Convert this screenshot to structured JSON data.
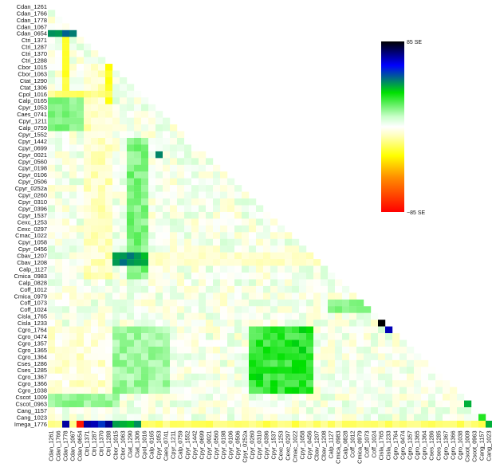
{
  "chart_data": {
    "type": "heatmap",
    "layout": "lower-triangle",
    "labels": [
      "Cdan_1261",
      "Cdan_1766",
      "Cdan_1778",
      "Cdan_1067",
      "Cdan_0654",
      "Ctri_1371",
      "Ctri_1287",
      "Ctri_1370",
      "Ctri_1288",
      "Cbor_1015",
      "Cbor_1063",
      "Ctat_1290",
      "Ctat_1306",
      "Cpol_1016",
      "Calp_0165",
      "Cpyr_1053",
      "Caes_0741",
      "Cpyr_1211",
      "Calp_0759",
      "Cpyr_1552",
      "Cpyr_1442",
      "Cpyr_0699",
      "Cpyr_0021",
      "Cpyr_0560",
      "Cpyr_0198",
      "Cpyr_0106",
      "Cpyr_0506",
      "Cpyr_0252a",
      "Cpyr_0260",
      "Cpyr_0310",
      "Cpyr_0396",
      "Cpyr_1537",
      "Cexc_1253",
      "Cexc_0297",
      "Cmac_1022",
      "Cpyr_1058",
      "Cpyr_0456",
      "Cbav_1207",
      "Cbav_1208",
      "Calp_1127",
      "Cmica_0983",
      "Calp_0828",
      "Coff_1012",
      "Cmica_0979",
      "Coff_1073",
      "Coff_1024",
      "Cisla_1765",
      "Cisla_1233",
      "Cgro_1764",
      "Cgro_0474",
      "Cgro_1357",
      "Cgro_1365",
      "Cgro_1364",
      "Cses_1286",
      "Cses_1285",
      "Cgro_1367",
      "Cgro_1366",
      "Cgro_1038",
      "Cscot_1009",
      "Cscot_0963",
      "Cang_1157",
      "Cang_1023",
      "Imega_1776"
    ],
    "value_range": [
      -85,
      85
    ],
    "colorbar": {
      "max_label": "85 SE",
      "min_label": "−85 SE"
    },
    "colormap": [
      "#ff0000",
      "#ff8c00",
      "#ffff00",
      "#ffffc0",
      "#ffffff",
      "#c8ffc8",
      "#00e000",
      "#0000ff",
      "#000000"
    ],
    "notable_cells": [
      {
        "row": "Cpyr_0021",
        "col": "Cpyr_1053",
        "value": 45
      },
      {
        "row": "Cisla_1233",
        "col": "Cisla_1765",
        "value": 85
      },
      {
        "row": "Cgro_1764",
        "col": "Cisla_1233",
        "value": 68
      },
      {
        "row": "Cgro_1764",
        "col": "Cisla_1765",
        "value": 8
      },
      {
        "row": "Imega_1776",
        "col": "Cdan_1778",
        "value": 70
      },
      {
        "row": "Imega_1776",
        "col": "Cdan_0654",
        "value": -80
      },
      {
        "row": "Imega_1776",
        "col": "Ctri_1371",
        "value": 70
      },
      {
        "row": "Imega_1776",
        "col": "Ctri_1287",
        "value": 68
      },
      {
        "row": "Imega_1776",
        "col": "Ctri_1370",
        "value": 55
      },
      {
        "row": "Imega_1776",
        "col": "Ctri_1288",
        "value": 72
      },
      {
        "row": "Imega_1776",
        "col": "Cbor_1015",
        "value": 42
      },
      {
        "row": "Imega_1776",
        "col": "Cbor_1063",
        "value": 40
      },
      {
        "row": "Imega_1776",
        "col": "Ctat_1290",
        "value": 38
      },
      {
        "row": "Imega_1776",
        "col": "Ctat_1306",
        "value": 44
      },
      {
        "row": "Imega_1776",
        "col": "Cang_1023",
        "value": 40
      },
      {
        "row": "Cscot_0963",
        "col": "Cscot_1009",
        "value": 40
      },
      {
        "row": "Cang_1023",
        "col": "Cang_1157",
        "value": 30
      }
    ]
  }
}
